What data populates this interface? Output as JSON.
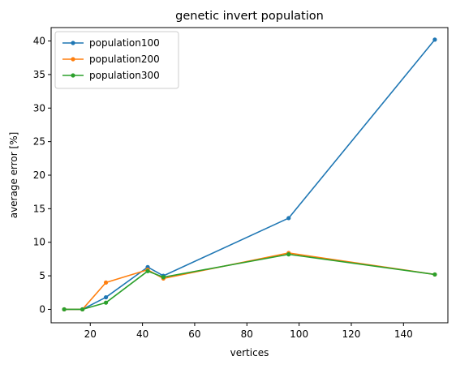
{
  "chart_data": {
    "type": "line",
    "title": "genetic invert population",
    "xlabel": "vertices",
    "ylabel": "average error [%]",
    "xlim": [
      5,
      157
    ],
    "ylim": [
      -2,
      42
    ],
    "xticks": [
      20,
      40,
      60,
      80,
      100,
      120,
      140
    ],
    "yticks": [
      0,
      5,
      10,
      15,
      20,
      25,
      30,
      35,
      40
    ],
    "x": [
      10,
      17,
      26,
      42,
      48,
      96,
      152
    ],
    "series": [
      {
        "name": "population100",
        "color": "#1f77b4",
        "values": [
          0,
          0,
          1.8,
          6.3,
          5.0,
          13.6,
          40.2
        ]
      },
      {
        "name": "population200",
        "color": "#ff7f0e",
        "values": [
          0,
          0,
          4.0,
          5.9,
          4.6,
          8.4,
          5.2
        ]
      },
      {
        "name": "population300",
        "color": "#2ca02c",
        "values": [
          0,
          0,
          1.0,
          5.7,
          4.8,
          8.2,
          5.2
        ]
      }
    ],
    "legend": "upper-left",
    "grid": false
  }
}
